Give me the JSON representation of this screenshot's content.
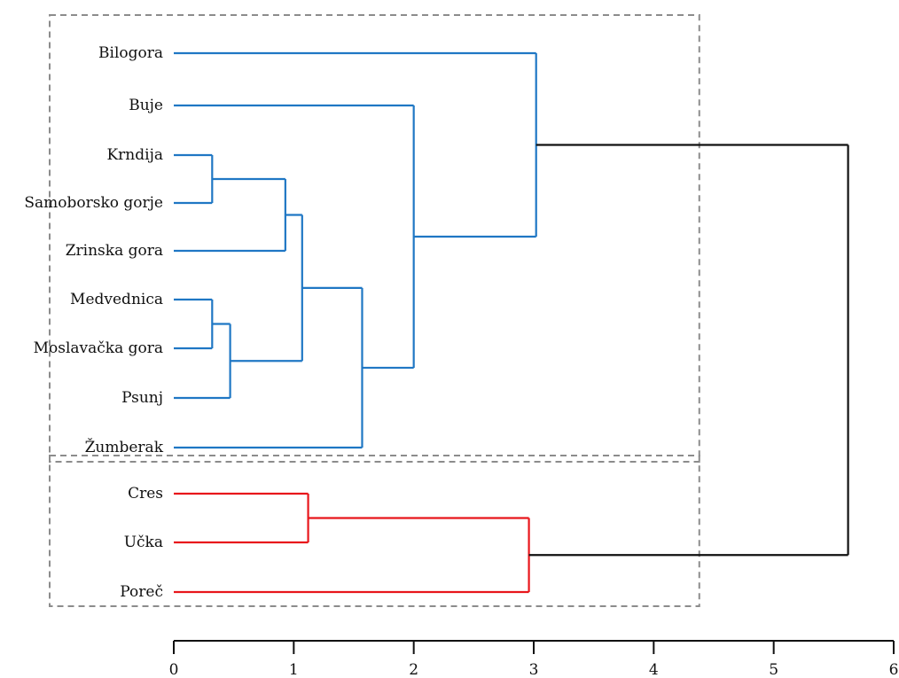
{
  "chart_data": {
    "type": "dendrogram",
    "orientation": "horizontal",
    "xlim": [
      0,
      6
    ],
    "xticks": [
      "0",
      "1",
      "2",
      "3",
      "4",
      "5",
      "6"
    ],
    "leaves": [
      {
        "name": "Bilogora",
        "label": "Bilogora"
      },
      {
        "name": "Buje",
        "label": "Buje"
      },
      {
        "name": "Krndija",
        "label": "Krndija"
      },
      {
        "name": "Samoborsko",
        "label": "Samoborsko gorje"
      },
      {
        "name": "Zrinska",
        "label": "Zrinska gora"
      },
      {
        "name": "Medvednica",
        "label": "Medvednica"
      },
      {
        "name": "Moslavacka",
        "label": "Moslavačka gora"
      },
      {
        "name": "Psunj",
        "label": "Psunj"
      },
      {
        "name": "Zumberak",
        "label": "Žumberak"
      },
      {
        "name": "Cres",
        "label": "Cres"
      },
      {
        "name": "Ucka",
        "label": "Učka"
      },
      {
        "name": "Porec",
        "label": "Poreč"
      }
    ],
    "merges": [
      {
        "id": "m1",
        "children": [
          "Krndija",
          "Samoborsko"
        ],
        "height": 0.32,
        "cluster": "blue"
      },
      {
        "id": "m2",
        "children": [
          "m1",
          "Zrinska"
        ],
        "height": 0.93,
        "cluster": "blue"
      },
      {
        "id": "m3",
        "children": [
          "Medvednica",
          "Moslavacka"
        ],
        "height": 0.32,
        "cluster": "blue"
      },
      {
        "id": "m4",
        "children": [
          "m3",
          "Psunj"
        ],
        "height": 0.47,
        "cluster": "blue"
      },
      {
        "id": "m5",
        "children": [
          "m2",
          "m4"
        ],
        "height": 1.07,
        "cluster": "blue"
      },
      {
        "id": "m6",
        "children": [
          "m5",
          "Zumberak"
        ],
        "height": 1.57,
        "cluster": "blue"
      },
      {
        "id": "m7",
        "children": [
          "Buje",
          "m6"
        ],
        "height": 2.0,
        "cluster": "blue"
      },
      {
        "id": "m8",
        "children": [
          "Bilogora",
          "m7"
        ],
        "height": 3.02,
        "cluster": "blue"
      },
      {
        "id": "m9",
        "children": [
          "Cres",
          "Ucka"
        ],
        "height": 1.12,
        "cluster": "red"
      },
      {
        "id": "m10",
        "children": [
          "m9",
          "Porec"
        ],
        "height": 2.96,
        "cluster": "red"
      },
      {
        "id": "m11",
        "children": [
          "m8",
          "m10"
        ],
        "height": 5.62,
        "cluster": "root"
      }
    ],
    "groups": [
      {
        "name": "group-continental",
        "leaves": [
          "Bilogora",
          "Zumberak"
        ],
        "extends_to": 4.38
      },
      {
        "name": "group-coastal",
        "leaves": [
          "Cres",
          "Porec"
        ],
        "extends_to": 4.38
      }
    ],
    "colors": {
      "blue": "#1f77c4",
      "red": "#e8161b",
      "root": "#111111"
    },
    "grid": false
  }
}
